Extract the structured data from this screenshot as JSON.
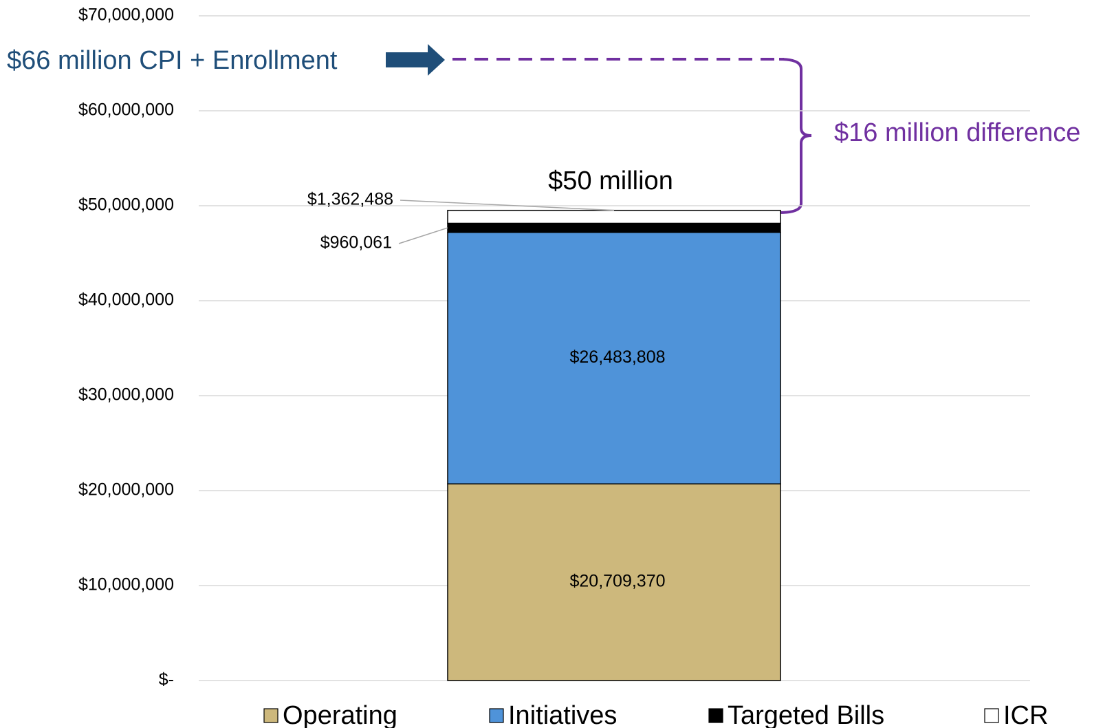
{
  "chart_data": {
    "type": "stacked_bar",
    "categories": [
      null
    ],
    "series": [
      {
        "name": "Operating",
        "color": "#cdb87c",
        "values": [
          20709370
        ],
        "value_labels": [
          "$20,709,370"
        ]
      },
      {
        "name": "Initiatives",
        "color": "#4f93d9",
        "values": [
          26483808
        ],
        "value_labels": [
          "$26,483,808"
        ]
      },
      {
        "name": "Targeted Bills",
        "color": "#000000",
        "values": [
          960061
        ],
        "value_labels": [
          "$960,061"
        ]
      },
      {
        "name": "ICR",
        "color": "#ffffff",
        "values": [
          1362488
        ],
        "value_labels": [
          "$1,362,488"
        ]
      }
    ],
    "ylim": [
      0,
      70000000
    ],
    "yticks": [
      {
        "value": 0,
        "label": "$-"
      },
      {
        "value": 10000000,
        "label": "$10,000,000"
      },
      {
        "value": 20000000,
        "label": "$20,000,000"
      },
      {
        "value": 30000000,
        "label": "$30,000,000"
      },
      {
        "value": 40000000,
        "label": "$40,000,000"
      },
      {
        "value": 50000000,
        "label": "$50,000,000"
      },
      {
        "value": 60000000,
        "label": "$60,000,000"
      },
      {
        "value": 70000000,
        "label": "$70,000,000"
      }
    ],
    "grid": true,
    "legend": "bottom",
    "annotations": [
      "$50 million",
      "$66 million CPI + Enrollment",
      "$16 million difference"
    ]
  }
}
